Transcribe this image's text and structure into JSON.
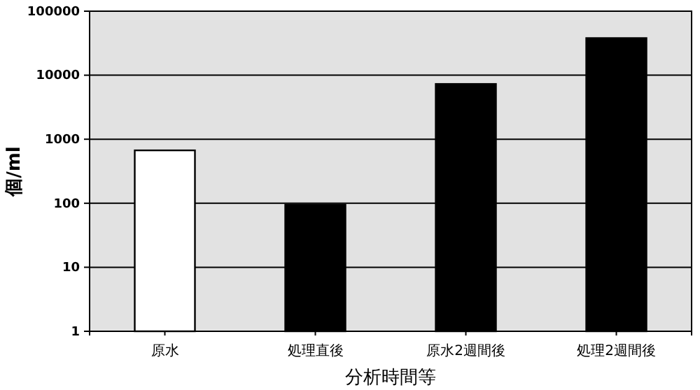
{
  "chart_data": {
    "type": "bar",
    "xlabel": "分析時間等",
    "ylabel": "個/ml",
    "categories": [
      "原水",
      "処理直後",
      "原水2週間後",
      "処理2週間後"
    ],
    "values": [
      670,
      95,
      7300,
      38000
    ],
    "colors": [
      "#ffffff",
      "#000000",
      "#000000",
      "#000000"
    ],
    "log": true,
    "ylim": [
      1,
      100000
    ],
    "yticks": [
      1,
      10,
      100,
      1000,
      10000,
      100000
    ],
    "grid": "y"
  }
}
